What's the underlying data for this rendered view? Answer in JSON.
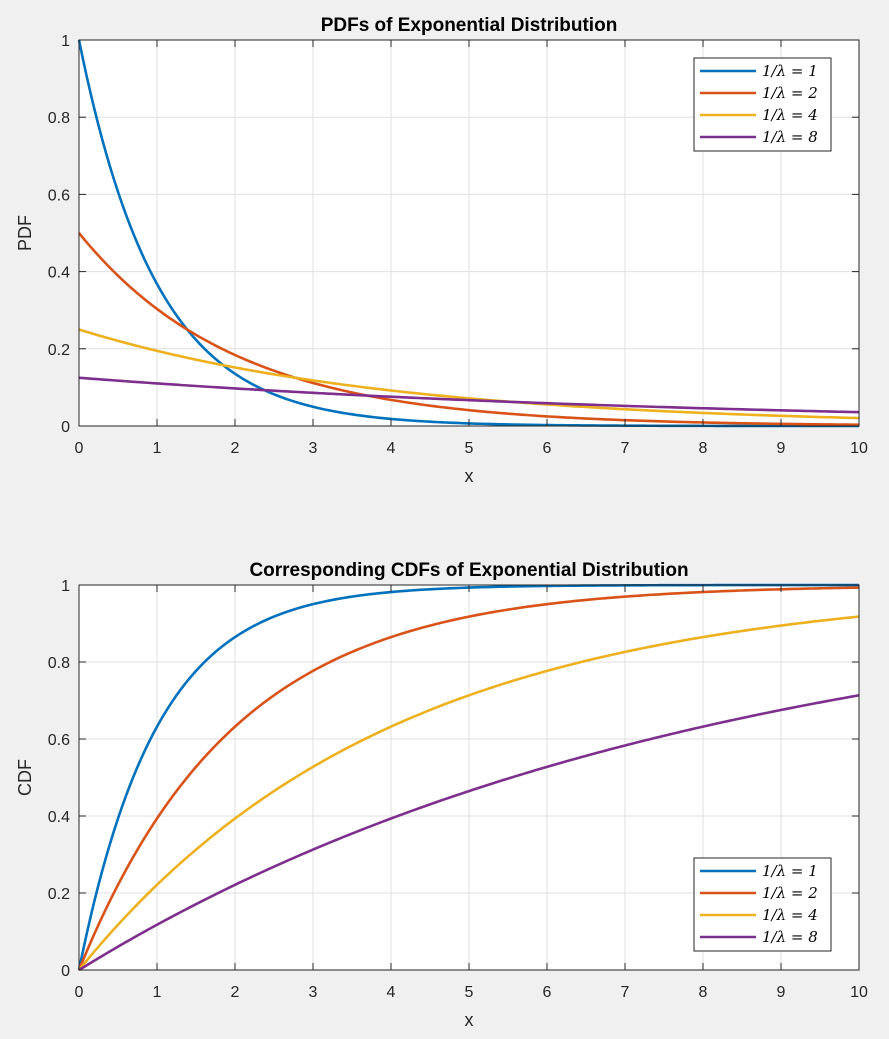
{
  "chart_data": [
    {
      "type": "line",
      "title": "PDFs of Exponential Distribution",
      "xlabel": "x",
      "ylabel": "PDF",
      "xlim": [
        0,
        10
      ],
      "ylim": [
        0,
        1
      ],
      "xticks": [
        "0",
        "1",
        "2",
        "3",
        "4",
        "5",
        "6",
        "7",
        "8",
        "9",
        "10"
      ],
      "yticks": [
        "0",
        "0.2",
        "0.4",
        "0.6",
        "0.8",
        "1"
      ],
      "grid": true,
      "legend_position": "top-right",
      "series": [
        {
          "name": "1/λ = 1",
          "mean": 1,
          "color": "#0072BD",
          "x": [
            0,
            0.5,
            1,
            1.5,
            2,
            2.5,
            3,
            3.5,
            4,
            4.5,
            5,
            6,
            7,
            8,
            9,
            10
          ],
          "y": [
            1,
            0.607,
            0.368,
            0.223,
            0.135,
            0.082,
            0.05,
            0.03,
            0.018,
            0.011,
            0.007,
            0.002,
            0.001,
            0.0003,
            0.0001,
            5e-05
          ]
        },
        {
          "name": "1/λ = 2",
          "mean": 2,
          "color": "#D95319",
          "x": [
            0,
            1,
            2,
            3,
            4,
            5,
            6,
            7,
            8,
            9,
            10
          ],
          "y": [
            0.5,
            0.303,
            0.184,
            0.112,
            0.068,
            0.041,
            0.025,
            0.015,
            0.009,
            0.006,
            0.003
          ]
        },
        {
          "name": "1/λ = 4",
          "mean": 4,
          "color": "#EDB120",
          "x": [
            0,
            1,
            2,
            3,
            4,
            5,
            6,
            7,
            8,
            9,
            10
          ],
          "y": [
            0.25,
            0.195,
            0.152,
            0.118,
            0.092,
            0.072,
            0.056,
            0.043,
            0.034,
            0.026,
            0.021
          ]
        },
        {
          "name": "1/λ = 8",
          "mean": 8,
          "color": "#7E2F8E",
          "x": [
            0,
            1,
            2,
            3,
            4,
            5,
            6,
            7,
            8,
            9,
            10
          ],
          "y": [
            0.125,
            0.11,
            0.097,
            0.086,
            0.076,
            0.067,
            0.059,
            0.052,
            0.046,
            0.041,
            0.036
          ]
        }
      ]
    },
    {
      "type": "line",
      "title": "Corresponding CDFs of Exponential Distribution",
      "xlabel": "x",
      "ylabel": "CDF",
      "xlim": [
        0,
        10
      ],
      "ylim": [
        0,
        1
      ],
      "xticks": [
        "0",
        "1",
        "2",
        "3",
        "4",
        "5",
        "6",
        "7",
        "8",
        "9",
        "10"
      ],
      "yticks": [
        "0",
        "0.2",
        "0.4",
        "0.6",
        "0.8",
        "1"
      ],
      "grid": true,
      "legend_position": "bottom-right",
      "series": [
        {
          "name": "1/λ = 1",
          "mean": 1,
          "color": "#0072BD",
          "x": [
            0,
            0.5,
            1,
            1.5,
            2,
            2.5,
            3,
            3.5,
            4,
            4.5,
            5,
            6,
            7,
            8,
            9,
            10
          ],
          "y": [
            0,
            0.393,
            0.632,
            0.777,
            0.865,
            0.918,
            0.95,
            0.97,
            0.982,
            0.989,
            0.993,
            0.998,
            0.999,
            1.0,
            1.0,
            1.0
          ]
        },
        {
          "name": "1/λ = 2",
          "mean": 2,
          "color": "#D95319",
          "x": [
            0,
            1,
            2,
            3,
            4,
            5,
            6,
            7,
            8,
            9,
            10
          ],
          "y": [
            0,
            0.393,
            0.632,
            0.777,
            0.865,
            0.918,
            0.95,
            0.97,
            0.982,
            0.989,
            0.993
          ]
        },
        {
          "name": "1/λ = 4",
          "mean": 4,
          "color": "#EDB120",
          "x": [
            0,
            1,
            2,
            3,
            4,
            5,
            6,
            7,
            8,
            9,
            10
          ],
          "y": [
            0,
            0.221,
            0.393,
            0.528,
            0.632,
            0.713,
            0.777,
            0.826,
            0.865,
            0.895,
            0.918
          ]
        },
        {
          "name": "1/λ = 8",
          "mean": 8,
          "color": "#7E2F8E",
          "x": [
            0,
            1,
            2,
            3,
            4,
            5,
            6,
            7,
            8,
            9,
            10
          ],
          "y": [
            0,
            0.118,
            0.221,
            0.313,
            0.393,
            0.465,
            0.528,
            0.583,
            0.632,
            0.675,
            0.713
          ]
        }
      ]
    }
  ]
}
